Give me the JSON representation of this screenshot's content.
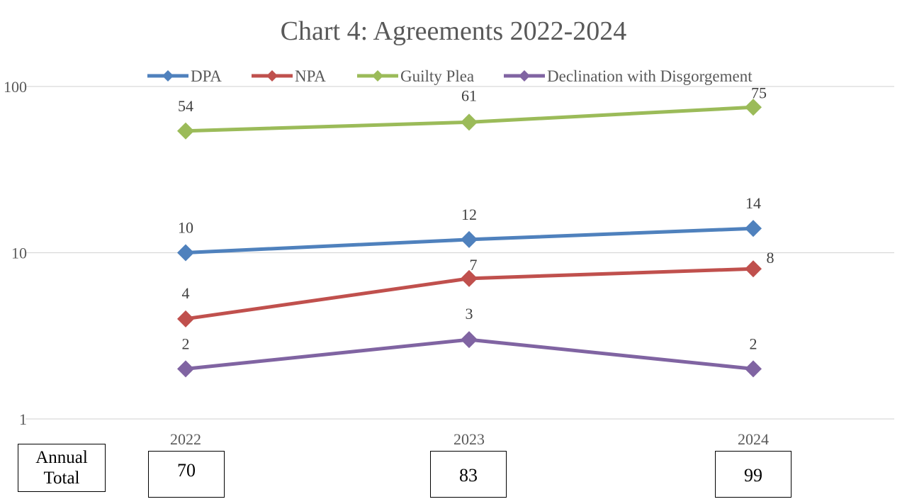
{
  "chart_data": {
    "type": "line",
    "title": "Chart 4: Agreements 2022-2024",
    "x": [
      "2022",
      "2023",
      "2024"
    ],
    "yscale": "log",
    "ylim": [
      1,
      100
    ],
    "yticks": [
      "1",
      "10",
      "100"
    ],
    "grid": true,
    "legend_position": "top",
    "series": [
      {
        "name": "DPA",
        "values": [
          10,
          12,
          14
        ],
        "color": "#4F81BD"
      },
      {
        "name": "NPA",
        "values": [
          4,
          7,
          8
        ],
        "color": "#C0504D"
      },
      {
        "name": "Guilty Plea",
        "values": [
          54,
          61,
          75
        ],
        "color": "#9BBB59"
      },
      {
        "name": "Declination with Disgorgement",
        "values": [
          2,
          3,
          2
        ],
        "color": "#8064A2"
      }
    ]
  },
  "annual_total": {
    "label": "Annual Total",
    "values": [
      "70",
      "83",
      "99"
    ]
  }
}
